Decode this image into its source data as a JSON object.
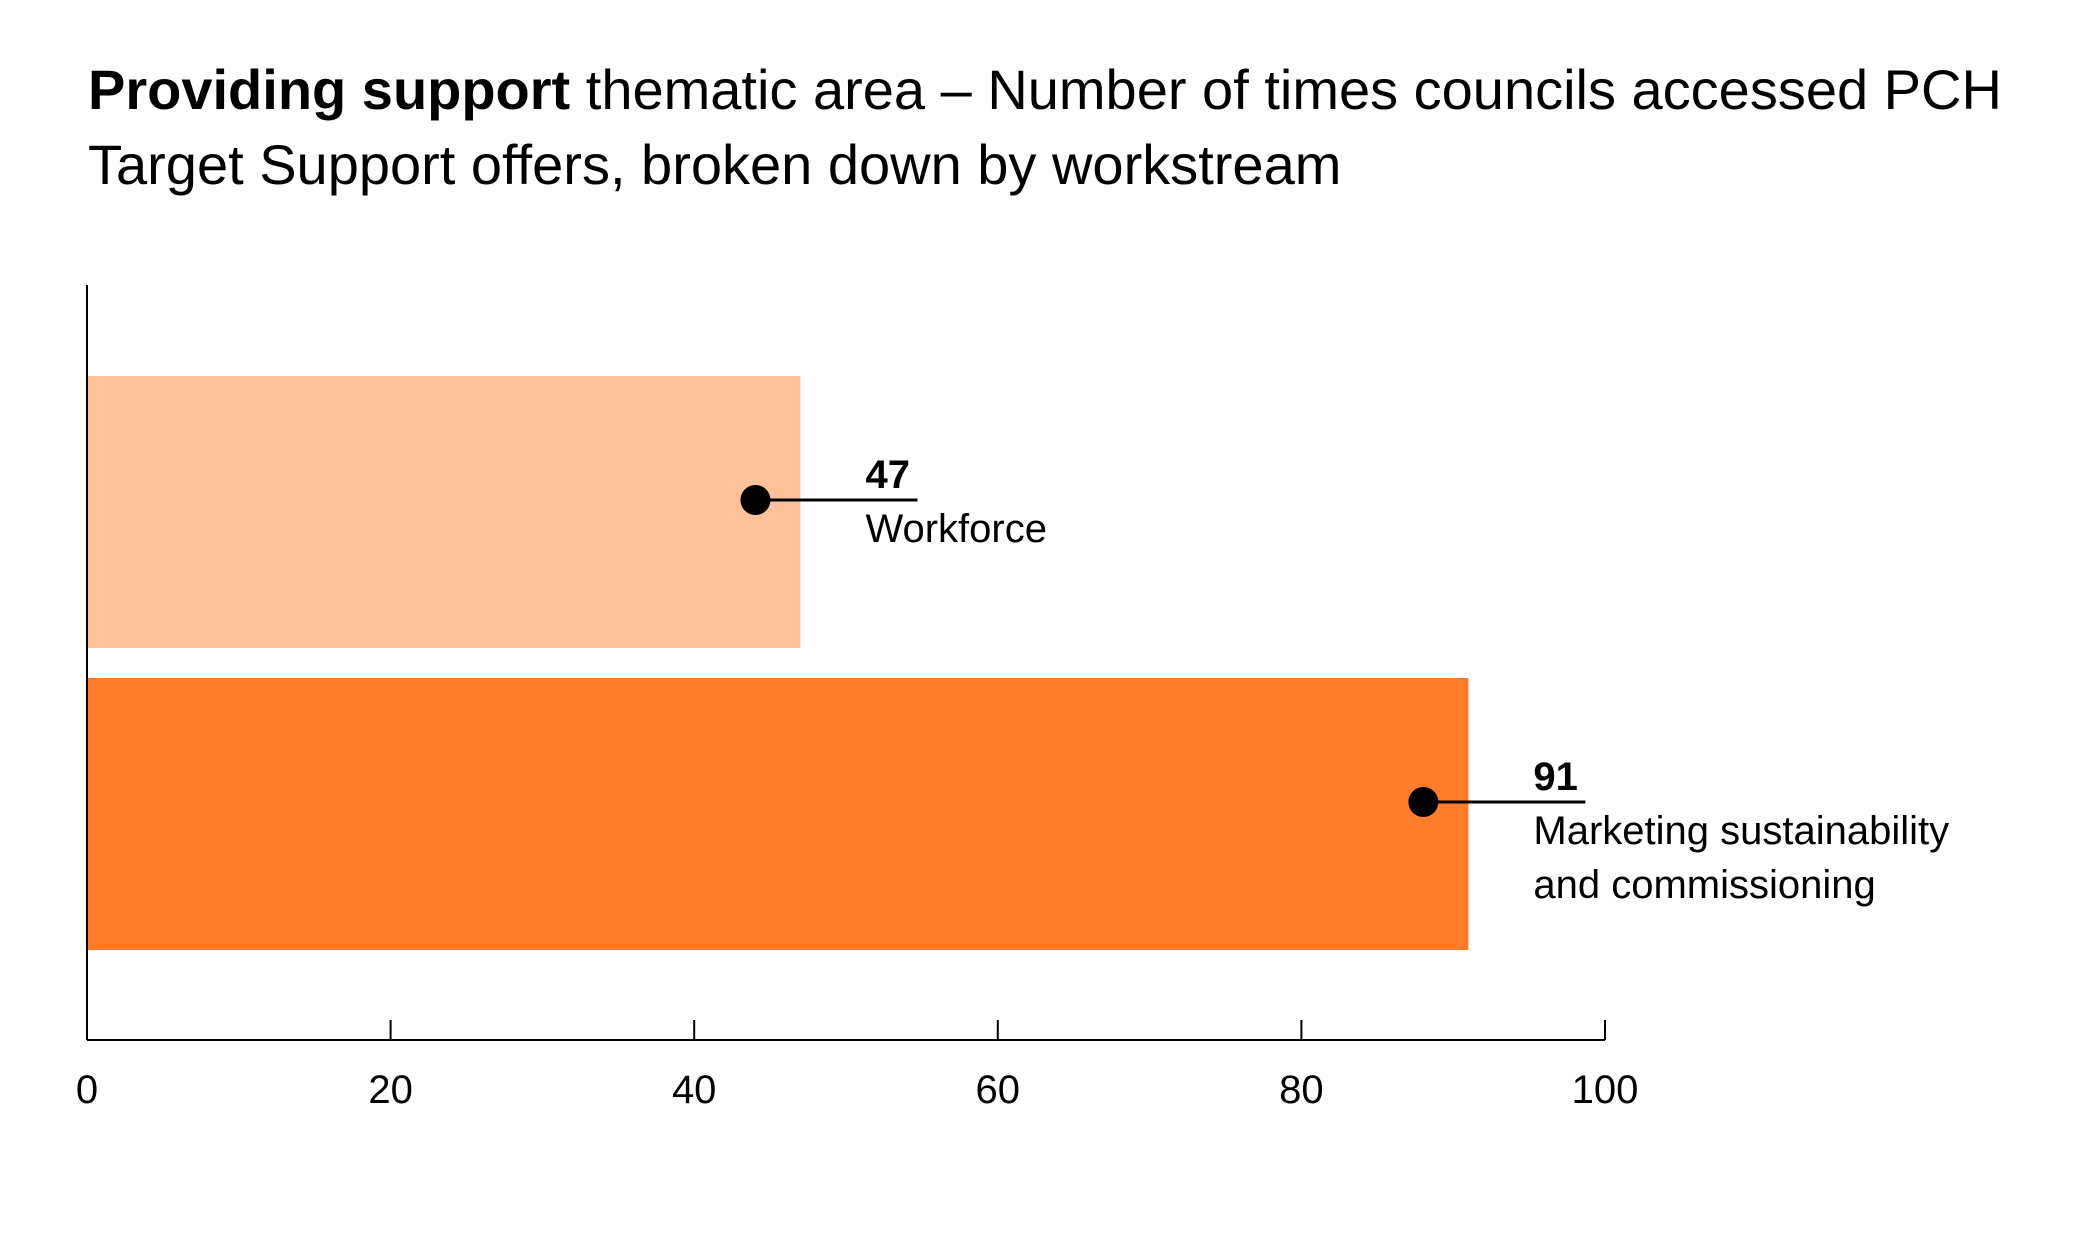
{
  "chart_data": {
    "type": "bar",
    "orientation": "horizontal",
    "title_bold": "Providing support",
    "title_rest": " thematic area – Number of times councils accessed PCH Target Support offers, broken down by workstream",
    "categories": [
      {
        "label_lines": [
          "Workforce"
        ],
        "value": 47,
        "value_label": "47",
        "color": "#FFC19A"
      },
      {
        "label_lines": [
          "Marketing sustainability",
          "and commissioning"
        ],
        "value": 91,
        "value_label": "91",
        "color": "#FF7C2B"
      }
    ],
    "xlim": [
      0,
      100
    ],
    "xticks": [
      0,
      20,
      40,
      60,
      80,
      100
    ],
    "tick_labels": [
      "0",
      "20",
      "40",
      "60",
      "80",
      "100"
    ],
    "grid": false,
    "legend": "none"
  }
}
